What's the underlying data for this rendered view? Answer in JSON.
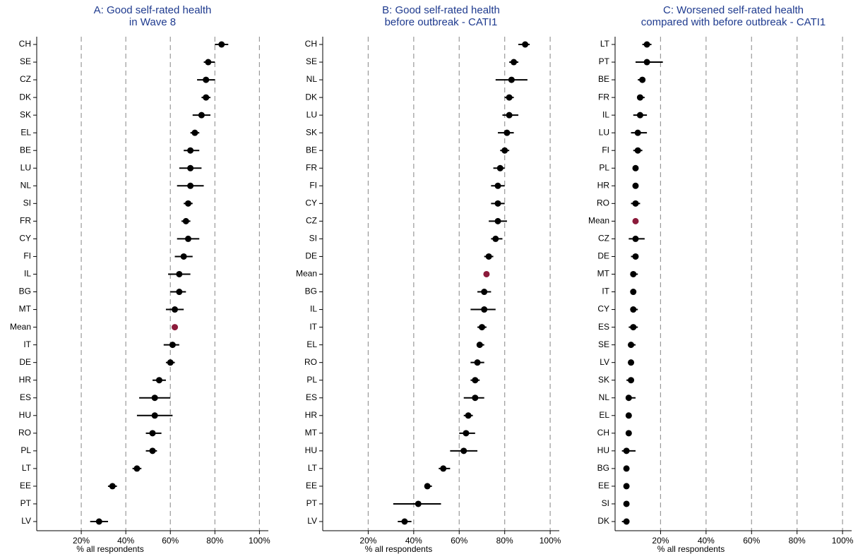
{
  "chart_data": [
    {
      "type": "dot-ci",
      "title_lines": [
        "A: Good self-rated health",
        "in Wave 8"
      ],
      "x_label": "% all respondents",
      "categories": [
        "CH",
        "SE",
        "CZ",
        "DK",
        "SK",
        "EL",
        "BE",
        "LU",
        "NL",
        "SI",
        "FR",
        "CY",
        "FI",
        "IL",
        "BG",
        "MT",
        "Mean",
        "IT",
        "DE",
        "HR",
        "ES",
        "HU",
        "RO",
        "PL",
        "LT",
        "EE",
        "PT",
        "LV"
      ],
      "values": [
        83,
        77,
        76,
        76,
        74,
        71,
        69,
        69,
        69,
        68,
        67,
        68,
        66,
        64,
        64,
        62,
        62,
        61,
        60,
        55,
        53,
        53,
        52,
        52,
        45,
        34,
        null,
        28
      ],
      "lower": [
        80,
        75,
        72,
        74,
        70,
        69,
        66,
        64,
        63,
        66,
        65,
        63,
        62,
        59,
        60,
        58,
        null,
        57,
        58,
        52,
        46,
        45,
        49,
        49,
        43,
        32,
        null,
        24
      ],
      "upper": [
        86,
        80,
        80,
        78,
        78,
        73,
        73,
        74,
        75,
        70,
        69,
        73,
        70,
        69,
        67,
        66,
        null,
        64,
        62,
        58,
        60,
        61,
        56,
        54,
        47,
        36,
        null,
        32
      ],
      "color": "#000000",
      "highlight": {
        "index": 16,
        "color": "#8b1a3a"
      },
      "xlim": [
        0,
        104
      ],
      "xticks": [
        {
          "value": 20,
          "label": "20%"
        },
        {
          "value": 40,
          "label": "40%"
        },
        {
          "value": 60,
          "label": "60%"
        },
        {
          "value": 80,
          "label": "80%"
        },
        {
          "value": 100,
          "label": "100%"
        }
      ],
      "grid": true
    },
    {
      "type": "dot-ci",
      "title_lines": [
        "B: Good self-rated health",
        "before outbreak - CATI1"
      ],
      "x_label": "% all respondents",
      "categories": [
        "CH",
        "SE",
        "NL",
        "DK",
        "LU",
        "SK",
        "BE",
        "FR",
        "FI",
        "CY",
        "CZ",
        "SI",
        "DE",
        "Mean",
        "BG",
        "IL",
        "IT",
        "EL",
        "RO",
        "PL",
        "ES",
        "HR",
        "MT",
        "HU",
        "LT",
        "EE",
        "PT",
        "LV"
      ],
      "values": [
        89,
        84,
        83,
        82,
        82,
        81,
        80,
        78,
        77,
        77,
        77,
        76,
        73,
        72,
        71,
        71,
        70,
        69,
        68,
        67,
        67,
        64,
        63,
        62,
        53,
        46,
        42,
        36
      ],
      "lower": [
        86,
        82,
        76,
        80,
        79,
        77,
        78,
        75,
        74,
        74,
        73,
        74,
        71,
        null,
        68,
        65,
        68,
        68,
        65,
        65,
        62,
        62,
        60,
        56,
        51,
        45,
        31,
        33
      ],
      "upper": [
        91,
        86,
        90,
        84,
        86,
        84,
        82,
        80,
        80,
        80,
        81,
        79,
        75,
        null,
        74,
        76,
        72,
        71,
        71,
        69,
        71,
        66,
        67,
        68,
        56,
        48,
        52,
        39
      ],
      "color": "#000000",
      "highlight": {
        "index": 13,
        "color": "#8b1a3a"
      },
      "xlim": [
        0,
        104
      ],
      "xticks": [
        {
          "value": 20,
          "label": "20%"
        },
        {
          "value": 40,
          "label": "40%"
        },
        {
          "value": 60,
          "label": "60%"
        },
        {
          "value": 80,
          "label": "80%"
        },
        {
          "value": 100,
          "label": "100%"
        }
      ],
      "grid": true
    },
    {
      "type": "dot-ci",
      "title_lines": [
        "C: Worsened self-rated health",
        "compared with before outbreak - CATI1"
      ],
      "x_label": "% all respondents",
      "categories": [
        "LT",
        "PT",
        "BE",
        "FR",
        "IL",
        "LU",
        "FI",
        "PL",
        "HR",
        "RO",
        "Mean",
        "CZ",
        "DE",
        "MT",
        "IT",
        "CY",
        "ES",
        "SE",
        "LV",
        "SK",
        "NL",
        "EL",
        "CH",
        "HU",
        "BG",
        "EE",
        "SI",
        "DK"
      ],
      "values": [
        14,
        14,
        12,
        11,
        11,
        10,
        10,
        9,
        9,
        9,
        9,
        9,
        9,
        8,
        8,
        8,
        8,
        7,
        7,
        7,
        6,
        6,
        6,
        5,
        5,
        5,
        5,
        5
      ],
      "lower": [
        12,
        9,
        10,
        10,
        8,
        7,
        8,
        8,
        8,
        7,
        null,
        6,
        7,
        7,
        7,
        7,
        6,
        6,
        6,
        5,
        5,
        5,
        5,
        3,
        4,
        4,
        4,
        3
      ],
      "upper": [
        16,
        21,
        13,
        13,
        14,
        14,
        12,
        10,
        10,
        11,
        null,
        13,
        10,
        10,
        9,
        10,
        10,
        9,
        8,
        8,
        9,
        7,
        7,
        9,
        6,
        6,
        6,
        6
      ],
      "color": "#000000",
      "highlight": {
        "index": 10,
        "color": "#8b1a3a"
      },
      "xlim": [
        0,
        104
      ],
      "xticks": [
        {
          "value": 20,
          "label": "20%"
        },
        {
          "value": 40,
          "label": "40%"
        },
        {
          "value": 60,
          "label": "60%"
        },
        {
          "value": 80,
          "label": "80%"
        },
        {
          "value": 100,
          "label": "100%"
        }
      ],
      "grid": true
    }
  ]
}
